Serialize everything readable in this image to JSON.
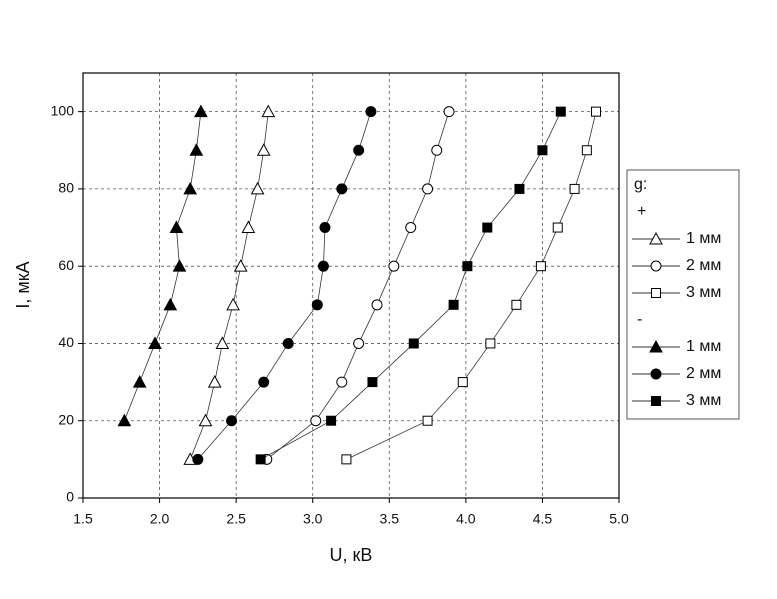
{
  "chart_data": {
    "type": "line",
    "x_label": "U, кВ",
    "y_label": "I, мкА",
    "xlim": [
      1.5,
      5.0
    ],
    "ylim": [
      0,
      110
    ],
    "xticks": [
      1.5,
      {
        "value": 2,
        "label": "2.0"
      },
      2.5,
      {
        "value": 3,
        "label": "3.0"
      },
      3.5,
      {
        "value": 4,
        "label": "4.0"
      },
      4.5,
      {
        "value": 5,
        "label": "5.0"
      }
    ],
    "yticks": [
      0,
      20,
      40,
      60,
      80,
      100
    ],
    "grid": true,
    "legend_title": "g:",
    "series": [
      {
        "name": "1 мм",
        "group": "+",
        "marker": "triangle",
        "filled": false,
        "color": "#000000",
        "x": [
          2.2,
          2.3,
          2.36,
          2.41,
          2.48,
          2.53,
          2.58,
          2.64,
          2.68,
          2.71
        ],
        "values": [
          10,
          20,
          30,
          40,
          50,
          60,
          70,
          80,
          90,
          100
        ]
      },
      {
        "name": "2 мм",
        "group": "+",
        "marker": "circle",
        "filled": false,
        "color": "#000000",
        "x": [
          2.7,
          3.02,
          3.19,
          3.3,
          3.42,
          3.53,
          3.64,
          3.75,
          3.81,
          3.89
        ],
        "values": [
          10,
          20,
          30,
          40,
          50,
          60,
          70,
          80,
          90,
          100
        ]
      },
      {
        "name": "3 мм",
        "group": "+",
        "marker": "square",
        "filled": false,
        "color": "#000000",
        "x": [
          3.22,
          3.75,
          3.98,
          4.16,
          4.33,
          4.49,
          4.6,
          4.71,
          4.79,
          4.85
        ],
        "values": [
          10,
          20,
          30,
          40,
          50,
          60,
          70,
          80,
          90,
          100
        ]
      },
      {
        "name": "1 мм",
        "group": "-",
        "marker": "triangle",
        "filled": true,
        "color": "#000000",
        "x": [
          1.77,
          1.87,
          1.97,
          2.07,
          2.13,
          2.11,
          2.2,
          2.24,
          2.27
        ],
        "values": [
          20,
          30,
          40,
          50,
          60,
          70,
          80,
          90,
          100
        ]
      },
      {
        "name": "2 мм",
        "group": "-",
        "marker": "circle",
        "filled": true,
        "color": "#000000",
        "x": [
          2.25,
          2.47,
          2.68,
          2.84,
          3.03,
          3.07,
          3.08,
          3.19,
          3.3,
          3.38
        ],
        "values": [
          10,
          20,
          30,
          40,
          50,
          60,
          70,
          80,
          90,
          100
        ]
      },
      {
        "name": "3 мм",
        "group": "-",
        "marker": "square",
        "filled": true,
        "color": "#000000",
        "x": [
          2.66,
          3.12,
          3.39,
          3.66,
          3.92,
          4.01,
          4.14,
          4.35,
          4.5,
          4.62
        ],
        "values": [
          10,
          20,
          30,
          40,
          50,
          60,
          70,
          80,
          90,
          100
        ]
      }
    ]
  }
}
